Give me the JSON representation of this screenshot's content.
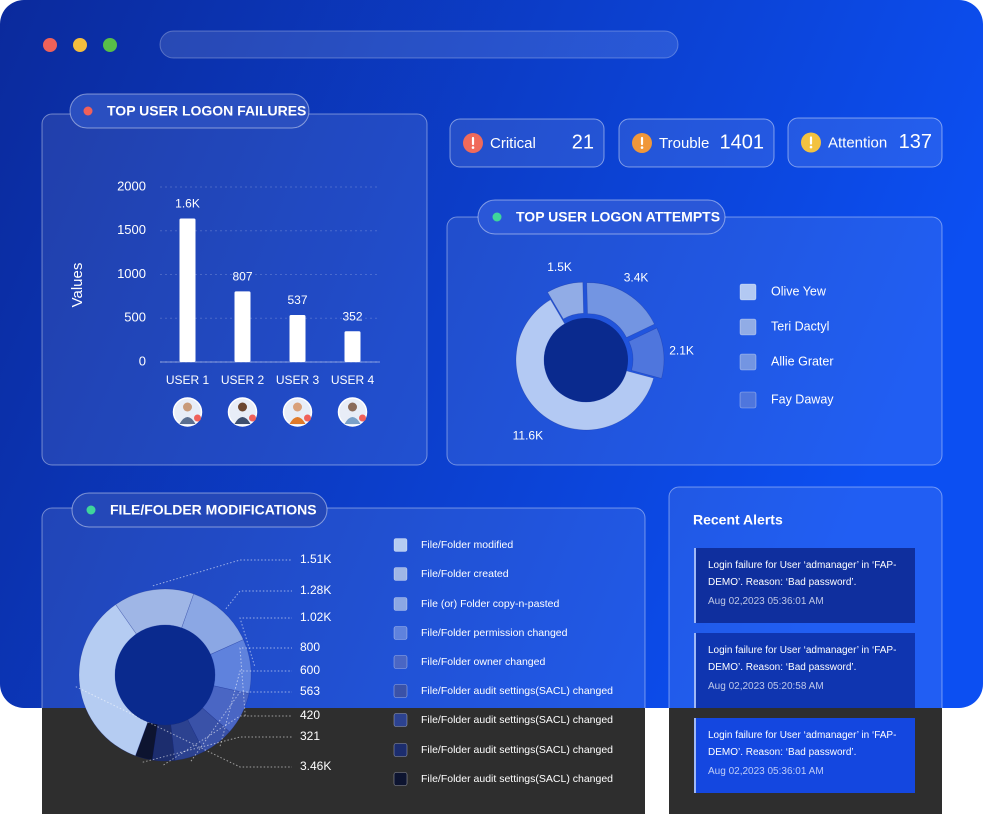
{
  "status_cards": [
    {
      "label": "Critical",
      "value": 21
    },
    {
      "label": "Trouble",
      "value": 1401
    },
    {
      "label": "Attention",
      "value": 137
    }
  ],
  "chart_data": [
    {
      "type": "bar",
      "title": "TOP USER LOGON FAILURES",
      "y_label": "Values",
      "categories": [
        "USER 1",
        "USER 2",
        "USER 3",
        "USER 4"
      ],
      "values": [
        1640,
        807,
        537,
        352
      ],
      "value_labels": [
        "1.6K",
        "807",
        "537",
        "352"
      ],
      "color": "#ffffff",
      "ylim": [
        0,
        2000
      ],
      "yticks": [
        0,
        500,
        1000,
        1500,
        2000
      ],
      "grid": true
    },
    {
      "type": "donut",
      "title": "TOP USER LOGON ATTEMPTS",
      "categories": [
        "Olive Yew",
        "Teri Dactyl",
        "Allie Grater",
        "Fay Daway"
      ],
      "values": [
        11600,
        1500,
        3400,
        2100
      ],
      "value_labels": [
        "11.6K",
        "1.5K",
        "3.4K",
        "2.1K"
      ],
      "colors": [
        "#b3c9f3",
        "#91ace6",
        "#7395e2",
        "#4f76dd"
      ]
    },
    {
      "type": "donut",
      "title": "FILE/FOLDER MODIFICATIONS",
      "categories": [
        "File/Folder modified",
        "File/Folder created",
        "File (or) Folder copy-n-pasted",
        "File/Folder permission changed",
        "File/Folder owner changed",
        "File/Folder audit settings(SACL) changed",
        "File/Folder audit settings(SACL) changed",
        "File/Folder audit settings(SACL) changed",
        "File/Folder audit settings(SACL) changed"
      ],
      "values": [
        3460,
        1510,
        1280,
        1020,
        800,
        600,
        563,
        420,
        321
      ],
      "value_labels": [
        "3.46K",
        "1.51K",
        "1.28K",
        "1.02K",
        "800",
        "600",
        "563",
        "420",
        "321"
      ],
      "colors": [
        "#b5ccf2",
        "#9fb6e6",
        "#8ba7e4",
        "#5f82dd",
        "#4a66c4",
        "#3a52a8",
        "#2c4290",
        "#1c2d6e",
        "#0d1430"
      ]
    }
  ],
  "recent_alerts": {
    "title": "Recent Alerts",
    "items": [
      {
        "message": "Login failure for User ‘admanager’ in ‘FAP-DEMO’. Reason: ‘Bad password’.",
        "time": "Aug 02,2023 05:36:01 AM"
      },
      {
        "message": "Login failure for User ‘admanager’ in ‘FAP-DEMO’. Reason: ‘Bad password’.",
        "time": "Aug 02,2023 05:20:58 AM"
      },
      {
        "message": "Login failure for User ‘admanager’ in ‘FAP-DEMO’. Reason: ‘Bad password’.",
        "time": "Aug 02,2023 05:36:01 AM"
      }
    ]
  }
}
